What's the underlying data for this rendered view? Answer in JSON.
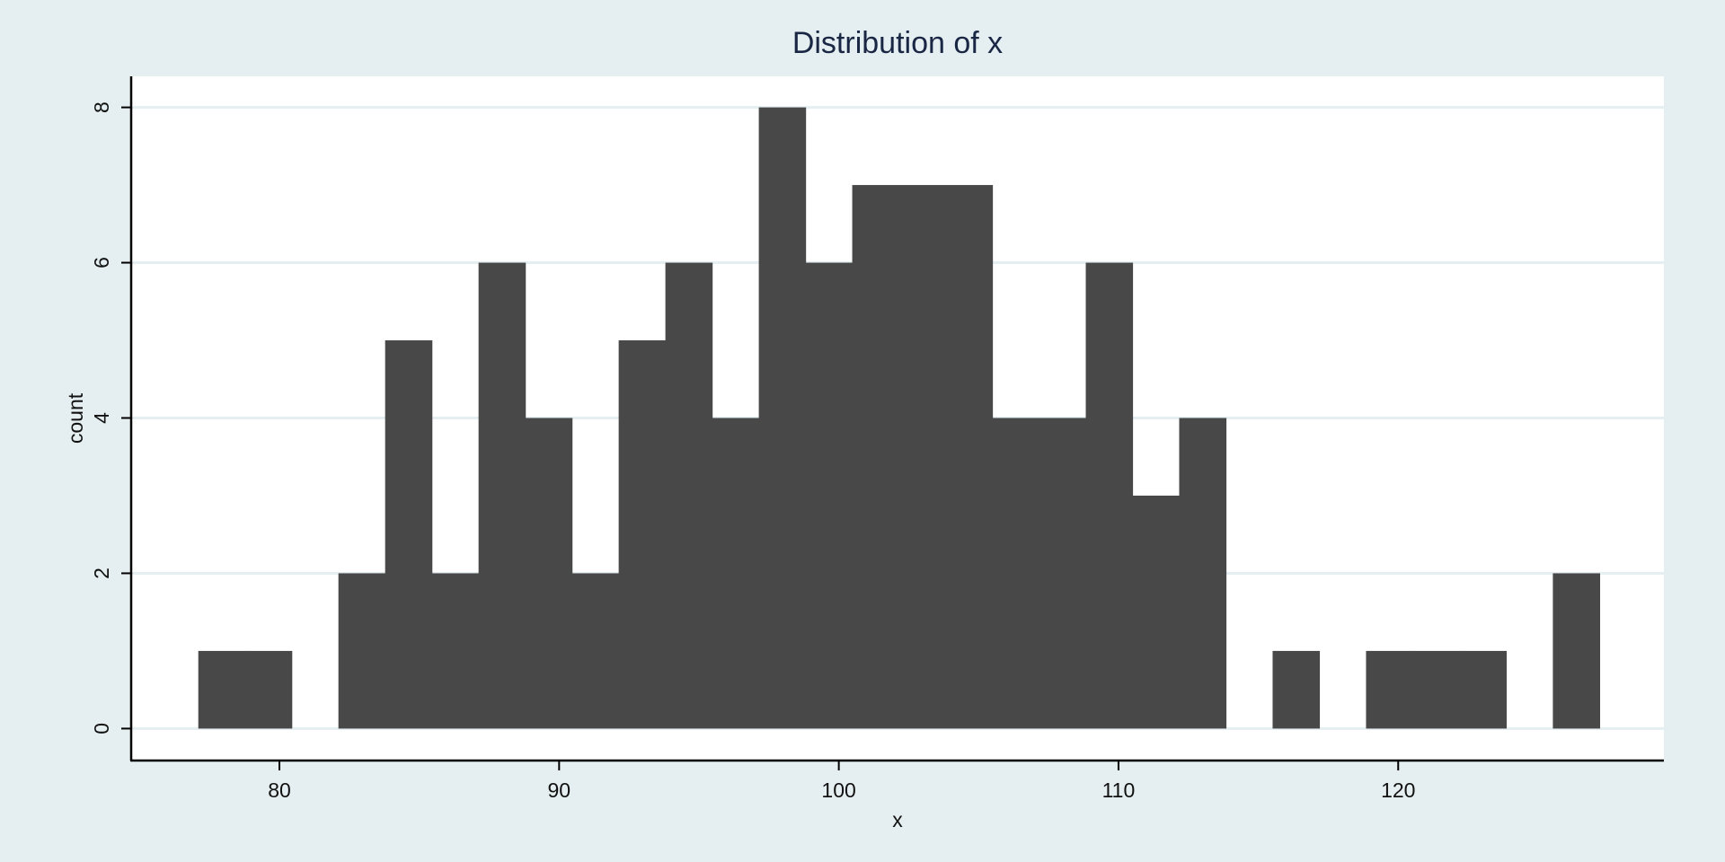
{
  "chart_data": {
    "type": "bar",
    "subtype": "histogram",
    "title": "Distribution of x",
    "xlabel": "x",
    "ylabel": "count",
    "xlim": [
      74.7,
      129.5
    ],
    "ylim": [
      -0.4,
      8.4
    ],
    "x_ticks": [
      80,
      90,
      100,
      110,
      120
    ],
    "y_ticks": [
      0,
      2,
      4,
      6,
      8
    ],
    "grid": true,
    "bin_width": 1.67,
    "bins": [
      {
        "start": 77.1,
        "count": 1
      },
      {
        "start": 78.77,
        "count": 1
      },
      {
        "start": 82.11,
        "count": 2
      },
      {
        "start": 83.78,
        "count": 5
      },
      {
        "start": 85.45,
        "count": 2
      },
      {
        "start": 87.12,
        "count": 6
      },
      {
        "start": 88.79,
        "count": 4
      },
      {
        "start": 90.46,
        "count": 2
      },
      {
        "start": 92.13,
        "count": 5
      },
      {
        "start": 93.8,
        "count": 6
      },
      {
        "start": 95.47,
        "count": 4
      },
      {
        "start": 97.14,
        "count": 8
      },
      {
        "start": 98.81,
        "count": 6
      },
      {
        "start": 100.48,
        "count": 7
      },
      {
        "start": 102.15,
        "count": 7
      },
      {
        "start": 103.82,
        "count": 7
      },
      {
        "start": 105.49,
        "count": 4
      },
      {
        "start": 107.16,
        "count": 4
      },
      {
        "start": 108.83,
        "count": 6
      },
      {
        "start": 110.5,
        "count": 3
      },
      {
        "start": 112.17,
        "count": 4
      },
      {
        "start": 115.51,
        "count": 1
      },
      {
        "start": 118.85,
        "count": 1
      },
      {
        "start": 120.52,
        "count": 1
      },
      {
        "start": 122.19,
        "count": 1
      },
      {
        "start": 125.53,
        "count": 2
      }
    ],
    "colors": {
      "background": "#e5eef0",
      "plot_background": "#ffffff",
      "bar": "#484848",
      "grid": "#e5eef0",
      "axis": "#000000",
      "title": "#1a2744"
    }
  }
}
